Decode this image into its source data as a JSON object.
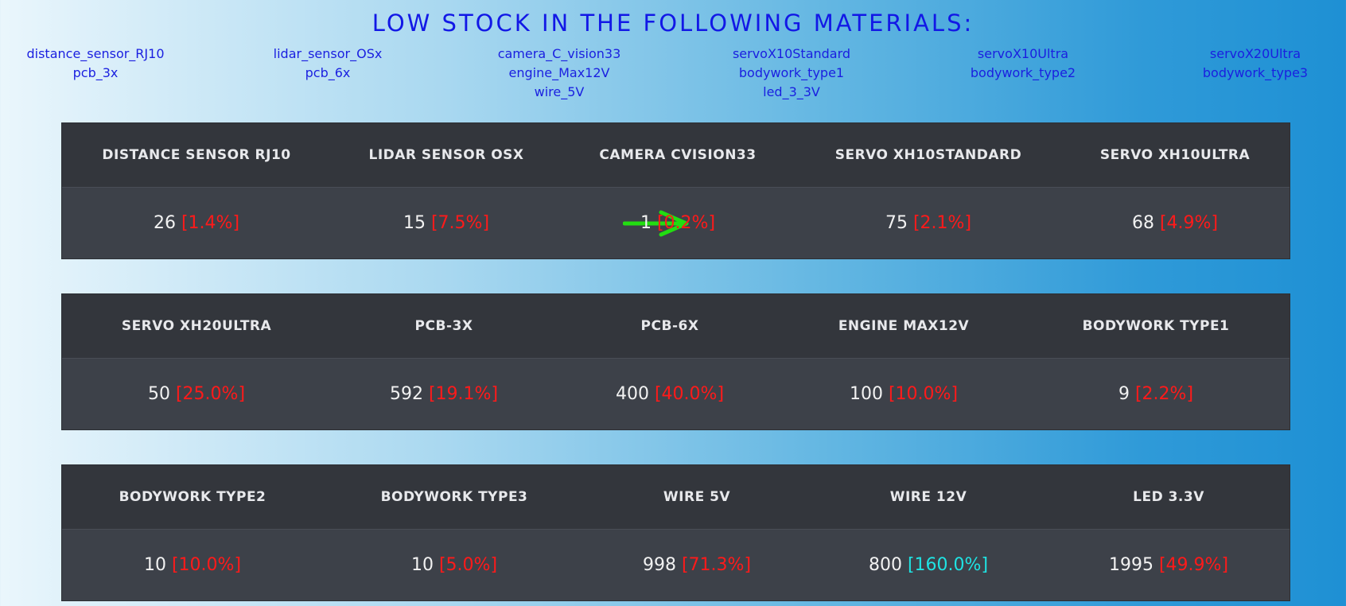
{
  "title": "LOW STOCK IN THE FOLLOWING MATERIALS:",
  "low_stock_columns": [
    [
      "distance_sensor_RJ10",
      "pcb_3x"
    ],
    [
      "lidar_sensor_OSx",
      "pcb_6x"
    ],
    [
      "camera_C_vision33",
      "engine_Max12V",
      "wire_5V"
    ],
    [
      "servoX10Standard",
      "bodywork_type1",
      "led_3_3V"
    ],
    [
      "servoX10Ultra",
      "bodywork_type2"
    ],
    [
      "servoX20Ultra",
      "bodywork_type3"
    ]
  ],
  "panels": [
    {
      "items": [
        {
          "name": "DISTANCE SENSOR RJ10",
          "qty": "26",
          "pct": "[1.4%]",
          "status": "low"
        },
        {
          "name": "LIDAR SENSOR OSX",
          "qty": "15",
          "pct": "[7.5%]",
          "status": "low"
        },
        {
          "name": "CAMERA CVISION33",
          "qty": "1",
          "pct": "[0.2%]",
          "status": "low"
        },
        {
          "name": "SERVO XH10STANDARD",
          "qty": "75",
          "pct": "[2.1%]",
          "status": "low"
        },
        {
          "name": "SERVO XH10ULTRA",
          "qty": "68",
          "pct": "[4.9%]",
          "status": "low"
        }
      ]
    },
    {
      "items": [
        {
          "name": "SERVO XH20ULTRA",
          "qty": "50",
          "pct": "[25.0%]",
          "status": "low"
        },
        {
          "name": "PCB-3X",
          "qty": "592",
          "pct": "[19.1%]",
          "status": "low"
        },
        {
          "name": "PCB-6X",
          "qty": "400",
          "pct": "[40.0%]",
          "status": "low"
        },
        {
          "name": "ENGINE MAX12V",
          "qty": "100",
          "pct": "[10.0%]",
          "status": "low"
        },
        {
          "name": "BODYWORK TYPE1",
          "qty": "9",
          "pct": "[2.2%]",
          "status": "low"
        }
      ]
    },
    {
      "items": [
        {
          "name": "BODYWORK TYPE2",
          "qty": "10",
          "pct": "[10.0%]",
          "status": "low"
        },
        {
          "name": "BODYWORK TYPE3",
          "qty": "10",
          "pct": "[5.0%]",
          "status": "low"
        },
        {
          "name": "WIRE 5V",
          "qty": "998",
          "pct": "[71.3%]",
          "status": "low"
        },
        {
          "name": "WIRE 12V",
          "qty": "800",
          "pct": "[160.0%]",
          "status": "ok"
        },
        {
          "name": "LED 3.3V",
          "qty": "1995",
          "pct": "[49.9%]",
          "status": "low"
        }
      ]
    }
  ],
  "highlight": {
    "icon": "green-arrow-icon",
    "color": "#22dd11",
    "target": "CAMERA CVISION33"
  },
  "colors": {
    "title": "#1218e6",
    "material_link": "#1a1fe0",
    "panel_header": "#33363c",
    "panel_body": "#3d4149",
    "pct_low": "#ff1a1a",
    "pct_ok": "#1fe3e3"
  }
}
